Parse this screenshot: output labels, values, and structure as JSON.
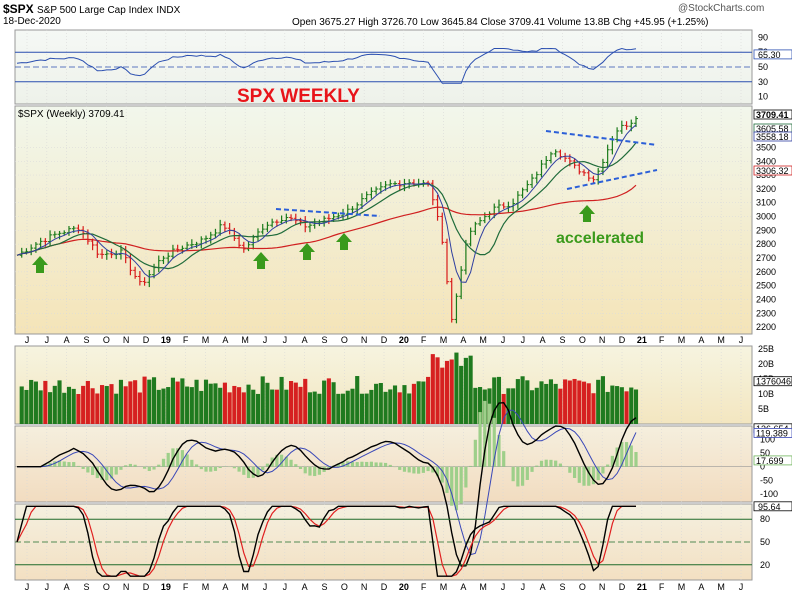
{
  "header": {
    "symbol": "$SPX",
    "name": "S&P 500 Large Cap Index",
    "exchange": "INDX",
    "date": "18-Dec-2020",
    "ohlc": "Open 3675.27  High 3726.70  Low 3645.84  Close 3709.41  Volume 13.8B  Chg +45.95 (+1.25%)",
    "watermark": "@StockCharts.com",
    "legend": "$SPX (Weekly) 3709.41"
  },
  "annotations": {
    "title": "SPX WEEKLY",
    "accelerated": "accelerated"
  },
  "chart_data": {
    "type": "line",
    "title": "SPX WEEKLY",
    "price_ticks": [
      2200,
      2300,
      2400,
      2500,
      2600,
      2700,
      2800,
      2900,
      3000,
      3100,
      3200,
      3300,
      3400,
      3500
    ],
    "price_range": [
      2150,
      3800
    ],
    "months": [
      "J",
      "J",
      "A",
      "S",
      "O",
      "N",
      "D",
      "19",
      "F",
      "M",
      "A",
      "M",
      "J",
      "J",
      "A",
      "S",
      "O",
      "N",
      "D",
      "20",
      "F",
      "M",
      "A",
      "M",
      "J",
      "J",
      "A",
      "S",
      "O",
      "N",
      "D",
      "21",
      "F",
      "M",
      "A",
      "M",
      "J"
    ],
    "x": [
      "2018-06",
      "2018-07",
      "2018-08",
      "2018-09",
      "2018-10",
      "2018-11",
      "2018-12",
      "2019-01",
      "2019-02",
      "2019-03",
      "2019-04",
      "2019-05",
      "2019-06",
      "2019-07",
      "2019-08",
      "2019-09",
      "2019-10",
      "2019-11",
      "2019-12",
      "2020-01",
      "2020-02",
      "2020-03",
      "2020-04",
      "2020-05",
      "2020-06",
      "2020-07",
      "2020-08",
      "2020-09",
      "2020-10",
      "2020-11",
      "2020-12"
    ],
    "series": [
      {
        "name": "$SPX (Weekly) 3709.41",
        "values": [
          2720,
          2810,
          2880,
          2920,
          2720,
          2750,
          2500,
          2700,
          2780,
          2830,
          2940,
          2760,
          2940,
          3000,
          2930,
          2980,
          3040,
          3150,
          3230,
          3250,
          3230,
          2580,
          2900,
          3050,
          3100,
          3270,
          3500,
          3360,
          3270,
          3620,
          3709
        ]
      }
    ],
    "price_labels": [
      "3709.41",
      "3605.58",
      "3558.18",
      "3306.32"
    ],
    "rsi": {
      "label": "65.30",
      "ticks": [
        90,
        70,
        50,
        30,
        10
      ]
    },
    "volume": {
      "label": "13760466...",
      "ticks": [
        "25B",
        "20B",
        "15B",
        "10B",
        "5B"
      ]
    },
    "macd": {
      "labels": [
        "136.654",
        "119.389",
        "17.699"
      ],
      "ticks": [
        100,
        50,
        0,
        -50,
        -100
      ]
    },
    "stoch": {
      "label": "95.64",
      "ticks": [
        80,
        50,
        20
      ]
    }
  }
}
